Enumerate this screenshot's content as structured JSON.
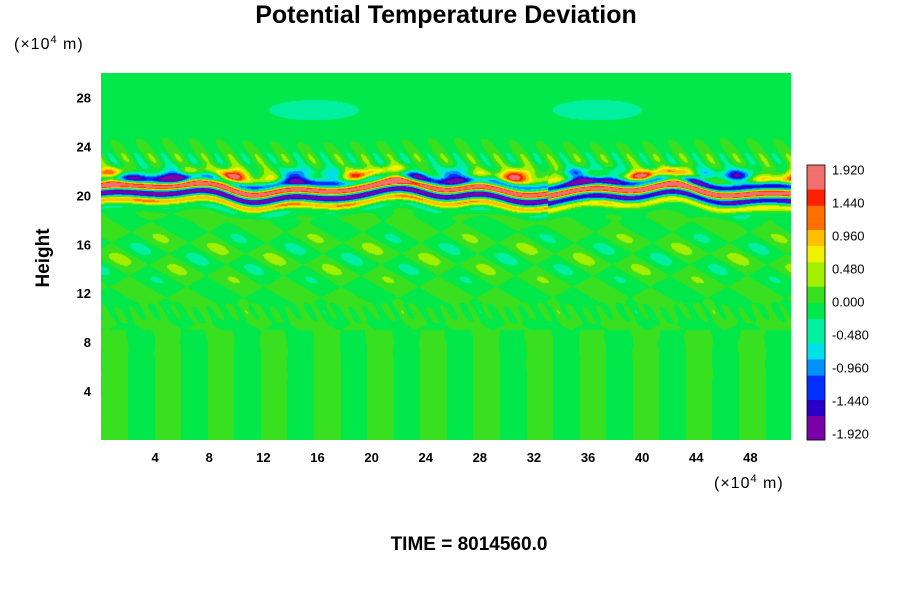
{
  "chart_data": {
    "type": "heatmap",
    "title": "Potential Temperature Deviation",
    "ylabel": "Height",
    "xlabel": "",
    "x_unit_prefix": "(×10",
    "x_unit_exp": "4",
    "x_unit_suffix": " m)",
    "y_unit_prefix": "(×10",
    "y_unit_exp": "4",
    "y_unit_suffix": " m)",
    "xlim": [
      0,
      51
    ],
    "ylim": [
      0,
      30
    ],
    "x_ticks": [
      4,
      8,
      12,
      16,
      20,
      24,
      28,
      32,
      36,
      40,
      44,
      48
    ],
    "y_ticks": [
      4,
      8,
      12,
      16,
      20,
      24,
      28
    ],
    "colorbar": {
      "range": [
        -2.0,
        2.0
      ],
      "labels": [
        "1.920",
        "1.440",
        "0.960",
        "0.480",
        "0.000",
        "-0.480",
        "-0.960",
        "-1.440",
        "-1.920"
      ],
      "label_values": [
        1.92,
        1.44,
        0.96,
        0.48,
        0.0,
        -0.48,
        -0.96,
        -1.44,
        -1.92
      ],
      "colors_low_to_high": [
        "#7a00a8",
        "#2a00c8",
        "#0030ff",
        "#0090ff",
        "#00e0e8",
        "#00f0a0",
        "#00e84a",
        "#38e020",
        "#a0f000",
        "#f0f000",
        "#ffc000",
        "#ff7000",
        "#ff2000",
        "#f07070"
      ],
      "field_background": "#30f040"
    },
    "features": [
      {
        "description": "strong alternating positive/negative deviation band",
        "y_center": 20.3,
        "y_halfwidth": 1.2,
        "peak": 2.0
      },
      {
        "description": "weaker wavy perturbations",
        "y_center": 15,
        "y_halfwidth": 3,
        "peak": 0.5
      },
      {
        "description": "faint perturbation layer",
        "y_center": 10.5,
        "y_halfwidth": 0.6,
        "peak": 0.25
      },
      {
        "description": "upper weak cyan region",
        "y_center": 27,
        "y_halfwidth": 1.5,
        "peak": -0.3
      }
    ]
  },
  "footer": {
    "time_label": "TIME = 8014560.0"
  }
}
